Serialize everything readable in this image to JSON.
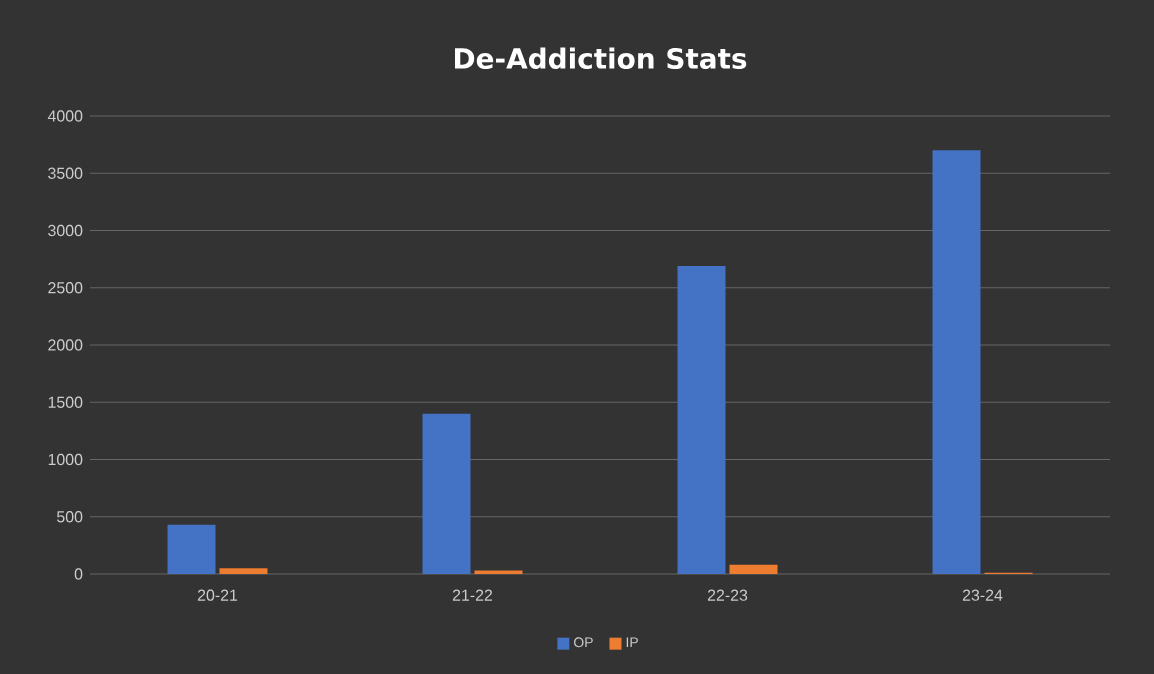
{
  "chart_data": {
    "type": "bar",
    "title": "De-Addiction Stats",
    "categories": [
      "20-21",
      "21-22",
      "22-23",
      "23-24"
    ],
    "series": [
      {
        "name": "OP",
        "color": "#4472c4",
        "values": [
          430,
          1400,
          2690,
          3700
        ]
      },
      {
        "name": "IP",
        "color": "#ed7d31",
        "values": [
          50,
          30,
          80,
          10
        ]
      }
    ],
    "ylim": [
      0,
      4000
    ],
    "yticks": [
      0,
      500,
      1000,
      1500,
      2000,
      2500,
      3000,
      3500,
      4000
    ],
    "grid": "y",
    "legend": "bottom"
  }
}
